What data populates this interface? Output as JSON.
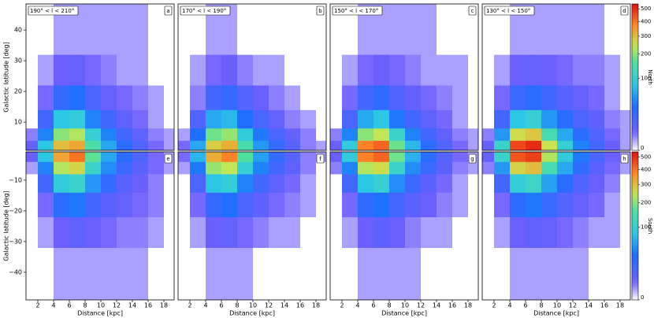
{
  "chart_data": [
    {
      "type": "heatmap",
      "label": "190° < l < 210°",
      "letter": "a",
      "ylabel": "Galactic latitude [deg]",
      "xlim": [
        0.5,
        19.3
      ],
      "ylim": [
        0.8,
        48.5
      ],
      "yticks": [
        10,
        20,
        30,
        40
      ],
      "xbins": [
        0,
        2,
        4,
        6,
        8,
        10,
        12,
        14,
        16,
        18,
        20
      ],
      "ybins": [
        0,
        4,
        8,
        14,
        22,
        32,
        50
      ],
      "values": [
        [
          5,
          80,
          300,
          330,
          150,
          60,
          25,
          10,
          3,
          1
        ],
        [
          2,
          40,
          200,
          230,
          100,
          40,
          15,
          6,
          2,
          1
        ],
        [
          0,
          15,
          80,
          90,
          40,
          15,
          6,
          3,
          1,
          0
        ],
        [
          0,
          3,
          20,
          30,
          12,
          5,
          3,
          2,
          1,
          0
        ],
        [
          0,
          1,
          4,
          5,
          3,
          2,
          1,
          1,
          0,
          0
        ],
        [
          0,
          0,
          1,
          1,
          1,
          1,
          1,
          1,
          0,
          0
        ]
      ]
    },
    {
      "type": "heatmap",
      "label": "170° < l < 190°",
      "letter": "b",
      "xlim": [
        0.5,
        19.3
      ],
      "ylim": [
        0.8,
        48.5
      ],
      "xbins": [
        0,
        2,
        4,
        6,
        8,
        10,
        12,
        14,
        16,
        18,
        20
      ],
      "ybins": [
        0,
        4,
        8,
        14,
        22,
        32,
        50
      ],
      "values": [
        [
          3,
          60,
          280,
          320,
          140,
          50,
          20,
          8,
          2,
          1
        ],
        [
          1,
          30,
          180,
          210,
          90,
          35,
          12,
          5,
          2,
          0
        ],
        [
          0,
          10,
          60,
          70,
          30,
          12,
          5,
          2,
          1,
          0
        ],
        [
          0,
          2,
          15,
          20,
          9,
          4,
          2,
          1,
          0,
          0
        ],
        [
          0,
          1,
          3,
          4,
          2,
          1,
          1,
          0,
          0,
          0
        ],
        [
          0,
          0,
          1,
          1,
          0,
          0,
          0,
          0,
          0,
          0
        ]
      ]
    },
    {
      "type": "heatmap",
      "label": "150° < l < 170°",
      "letter": "c",
      "xlim": [
        0.5,
        19.3
      ],
      "ylim": [
        0.8,
        48.5
      ],
      "xbins": [
        0,
        2,
        4,
        6,
        8,
        10,
        12,
        14,
        16,
        18,
        20
      ],
      "ybins": [
        0,
        4,
        8,
        14,
        22,
        32,
        50
      ],
      "values": [
        [
          4,
          90,
          380,
          420,
          180,
          70,
          25,
          10,
          3,
          1
        ],
        [
          2,
          40,
          200,
          240,
          110,
          40,
          15,
          6,
          2,
          1
        ],
        [
          0,
          12,
          60,
          80,
          35,
          15,
          6,
          3,
          1,
          0
        ],
        [
          0,
          3,
          15,
          22,
          10,
          5,
          3,
          2,
          1,
          0
        ],
        [
          0,
          1,
          3,
          4,
          3,
          2,
          1,
          1,
          1,
          0
        ],
        [
          0,
          0,
          1,
          1,
          1,
          1,
          1,
          0,
          0,
          0
        ]
      ]
    },
    {
      "type": "heatmap",
      "label": "130° < l < 150°",
      "letter": "d",
      "xlim": [
        0.5,
        19.3
      ],
      "ylim": [
        0.8,
        48.5
      ],
      "xbins": [
        0,
        2,
        4,
        6,
        8,
        10,
        12,
        14,
        16,
        18,
        20
      ],
      "ybins": [
        0,
        4,
        8,
        14,
        22,
        32,
        50
      ],
      "values": [
        [
          5,
          110,
          460,
          500,
          250,
          100,
          40,
          15,
          4,
          1
        ],
        [
          2,
          50,
          260,
          290,
          140,
          60,
          25,
          10,
          3,
          1
        ],
        [
          0,
          15,
          80,
          100,
          50,
          25,
          12,
          6,
          2,
          1
        ],
        [
          0,
          3,
          18,
          25,
          15,
          8,
          5,
          3,
          1,
          0
        ],
        [
          0,
          1,
          4,
          5,
          4,
          3,
          2,
          2,
          1,
          0
        ],
        [
          0,
          0,
          1,
          1,
          1,
          1,
          1,
          1,
          0,
          0
        ]
      ]
    },
    {
      "type": "heatmap",
      "letter": "e",
      "ylabel": "Galactic latitude [deg]",
      "xlabel": "Distance [kpc]",
      "xlim": [
        0.5,
        19.3
      ],
      "ylim": [
        -49,
        -0.8
      ],
      "xticks": [
        2,
        4,
        6,
        8,
        10,
        12,
        14,
        16,
        18
      ],
      "yticks": [
        {
          "value": -40,
          "label": "−40"
        },
        {
          "value": -30,
          "label": "−30"
        },
        {
          "value": -20,
          "label": "−20"
        },
        {
          "value": -10,
          "label": "−10"
        }
      ],
      "xbins": [
        0,
        2,
        4,
        6,
        8,
        10,
        12,
        14,
        16,
        18,
        20
      ],
      "ybins": [
        -50,
        -32,
        -22,
        -14,
        -8,
        -4,
        0
      ],
      "values": [
        [
          0,
          0,
          1,
          1,
          1,
          1,
          1,
          1,
          0,
          0
        ],
        [
          0,
          1,
          4,
          6,
          4,
          3,
          2,
          2,
          1,
          0
        ],
        [
          0,
          3,
          25,
          35,
          15,
          8,
          5,
          3,
          2,
          0
        ],
        [
          0,
          15,
          90,
          110,
          50,
          20,
          8,
          4,
          2,
          0
        ],
        [
          1,
          40,
          230,
          270,
          110,
          45,
          18,
          7,
          3,
          1
        ],
        [
          4,
          80,
          330,
          400,
          170,
          60,
          25,
          10,
          3,
          1
        ]
      ]
    },
    {
      "type": "heatmap",
      "letter": "f",
      "xlabel": "Distance [kpc]",
      "xlim": [
        0.5,
        19.3
      ],
      "ylim": [
        -49,
        -0.8
      ],
      "xticks": [
        2,
        4,
        6,
        8,
        10,
        12,
        14,
        16,
        18
      ],
      "xbins": [
        0,
        2,
        4,
        6,
        8,
        10,
        12,
        14,
        16,
        18,
        20
      ],
      "ybins": [
        -50,
        -32,
        -22,
        -14,
        -8,
        -4,
        0
      ],
      "values": [
        [
          0,
          0,
          1,
          1,
          1,
          0,
          0,
          0,
          0,
          0
        ],
        [
          0,
          1,
          4,
          5,
          3,
          2,
          1,
          1,
          0,
          0
        ],
        [
          0,
          3,
          20,
          30,
          12,
          6,
          3,
          2,
          1,
          0
        ],
        [
          0,
          12,
          80,
          95,
          40,
          15,
          6,
          3,
          1,
          0
        ],
        [
          1,
          35,
          210,
          240,
          100,
          40,
          15,
          6,
          2,
          0
        ],
        [
          3,
          70,
          320,
          380,
          160,
          55,
          20,
          8,
          2,
          1
        ]
      ]
    },
    {
      "type": "heatmap",
      "letter": "g",
      "xlabel": "Distance [kpc]",
      "xlim": [
        0.5,
        19.3
      ],
      "ylim": [
        -49,
        -0.8
      ],
      "xticks": [
        2,
        4,
        6,
        8,
        10,
        12,
        14,
        16,
        18
      ],
      "xbins": [
        0,
        2,
        4,
        6,
        8,
        10,
        12,
        14,
        16,
        18,
        20
      ],
      "ybins": [
        -50,
        -32,
        -22,
        -14,
        -8,
        -4,
        0
      ],
      "values": [
        [
          0,
          0,
          1,
          1,
          1,
          1,
          0,
          0,
          0,
          0
        ],
        [
          0,
          1,
          4,
          6,
          4,
          2,
          1,
          1,
          0,
          0
        ],
        [
          0,
          3,
          22,
          32,
          14,
          7,
          4,
          2,
          1,
          0
        ],
        [
          0,
          14,
          80,
          100,
          45,
          18,
          7,
          3,
          1,
          0
        ],
        [
          2,
          40,
          230,
          260,
          110,
          45,
          18,
          7,
          2,
          1
        ],
        [
          4,
          90,
          380,
          420,
          180,
          65,
          25,
          9,
          3,
          1
        ]
      ]
    },
    {
      "type": "heatmap",
      "letter": "h",
      "xlabel": "Distance [kpc]",
      "xlim": [
        0.5,
        19.3
      ],
      "ylim": [
        -49,
        -0.8
      ],
      "xticks": [
        2,
        4,
        6,
        8,
        10,
        12,
        14,
        16,
        18
      ],
      "xbins": [
        0,
        2,
        4,
        6,
        8,
        10,
        12,
        14,
        16,
        18,
        20
      ],
      "ybins": [
        -50,
        -32,
        -22,
        -14,
        -8,
        -4,
        0
      ],
      "values": [
        [
          0,
          0,
          1,
          1,
          1,
          1,
          1,
          0,
          0,
          0
        ],
        [
          0,
          1,
          4,
          6,
          5,
          3,
          2,
          1,
          1,
          0
        ],
        [
          0,
          3,
          25,
          35,
          18,
          9,
          5,
          3,
          1,
          0
        ],
        [
          0,
          15,
          95,
          115,
          55,
          25,
          10,
          4,
          2,
          0
        ],
        [
          2,
          50,
          270,
          300,
          140,
          60,
          22,
          8,
          3,
          1
        ],
        [
          5,
          110,
          440,
          470,
          230,
          90,
          35,
          12,
          4,
          1
        ]
      ]
    },
    {
      "type": "colorbar",
      "label": "North",
      "lim": [
        0,
        542
      ],
      "gamma": 0.42,
      "ticks": [
        0,
        100,
        200,
        300,
        400,
        500
      ]
    },
    {
      "type": "colorbar",
      "label": "South",
      "lim": [
        0,
        542
      ],
      "gamma": 0.42,
      "ticks": [
        0,
        100,
        200,
        300,
        400,
        500
      ]
    }
  ]
}
